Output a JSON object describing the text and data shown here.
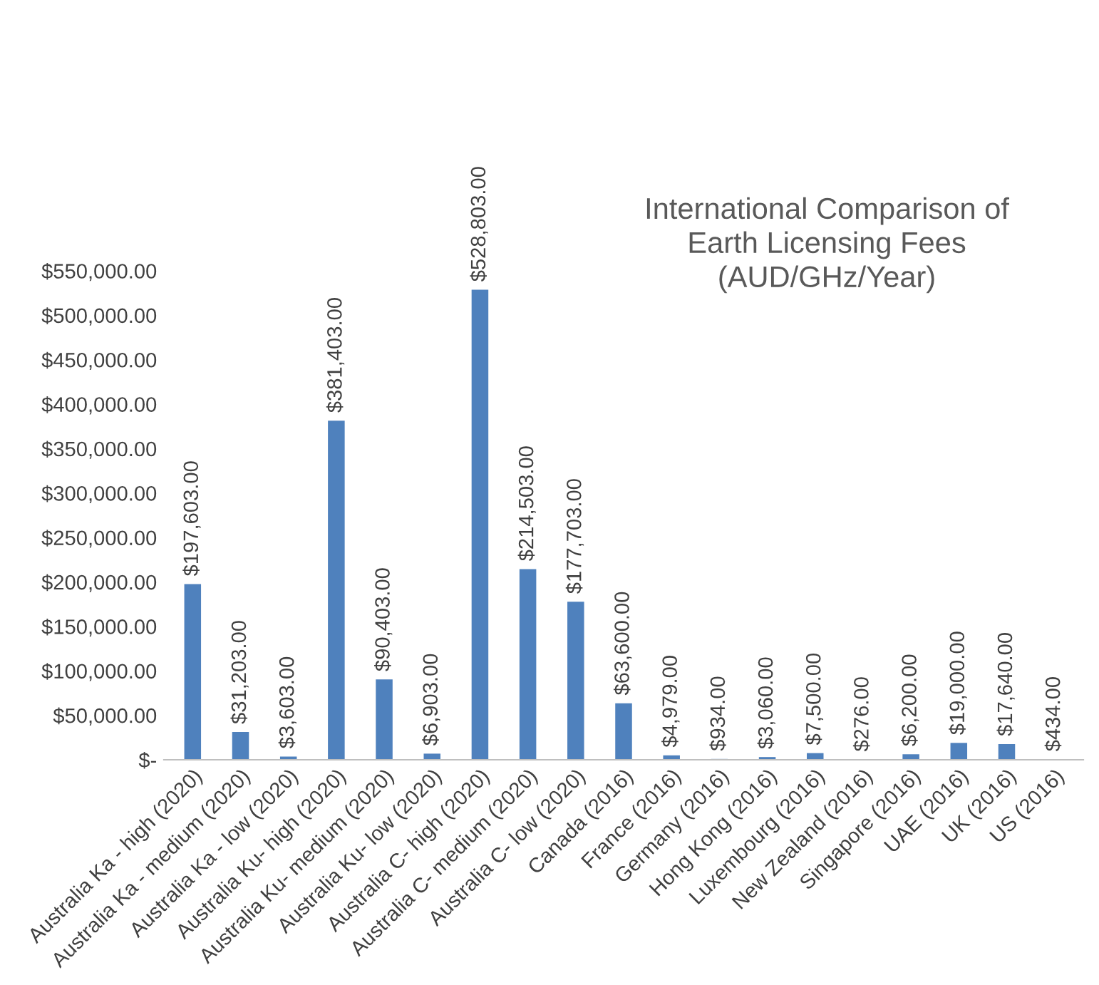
{
  "chart_data": {
    "type": "bar",
    "title": "International Comparison of\nEarth Licensing Fees\n(AUD/GHz/Year)",
    "categories": [
      "Australia Ka - high (2020)",
      "Australia Ka - medium (2020)",
      "Australia Ka - low (2020)",
      "Australia Ku- high (2020)",
      "Australia Ku- medium (2020)",
      "Australia Ku- low (2020)",
      "Australia C- high (2020)",
      "Australia C- medium (2020)",
      "Australia C- low (2020)",
      "Canada (2016)",
      "France (2016)",
      "Germany (2016)",
      "Hong Kong (2016)",
      "Luxembourg (2016)",
      "New Zealand (2016)",
      "Singapore (2016)",
      "UAE (2016)",
      "UK (2016)",
      "US (2016)"
    ],
    "values": [
      197603,
      31203,
      3603,
      381403,
      90403,
      6903,
      528803,
      214503,
      177703,
      63600,
      4979,
      934,
      3060,
      7500,
      276,
      6200,
      19000,
      17640,
      434
    ],
    "value_labels": [
      "$197,603.00",
      "$31,203.00",
      "$3,603.00",
      "$381,403.00",
      "$90,403.00",
      "$6,903.00",
      "$528,803.00",
      "$214,503.00",
      "$177,703.00",
      "$63,600.00",
      "$4,979.00",
      "$934.00",
      "$3,060.00",
      "$7,500.00",
      "$276.00",
      "$6,200.00",
      "$19,000.00",
      "$17,640.00",
      "$434.00"
    ],
    "color": "#4f81bd",
    "ylim": [
      0,
      550000
    ],
    "yticks": [
      {
        "value": 0,
        "label": "$-"
      },
      {
        "value": 50000,
        "label": "$50,000.00"
      },
      {
        "value": 100000,
        "label": "$100,000.00"
      },
      {
        "value": 150000,
        "label": "$150,000.00"
      },
      {
        "value": 200000,
        "label": "$200,000.00"
      },
      {
        "value": 250000,
        "label": "$250,000.00"
      },
      {
        "value": 300000,
        "label": "$300,000.00"
      },
      {
        "value": 350000,
        "label": "$350,000.00"
      },
      {
        "value": 400000,
        "label": "$400,000.00"
      },
      {
        "value": 450000,
        "label": "$450,000.00"
      },
      {
        "value": 500000,
        "label": "$500,000.00"
      },
      {
        "value": 550000,
        "label": "$550,000.00"
      }
    ],
    "grid": false,
    "legend": false
  }
}
